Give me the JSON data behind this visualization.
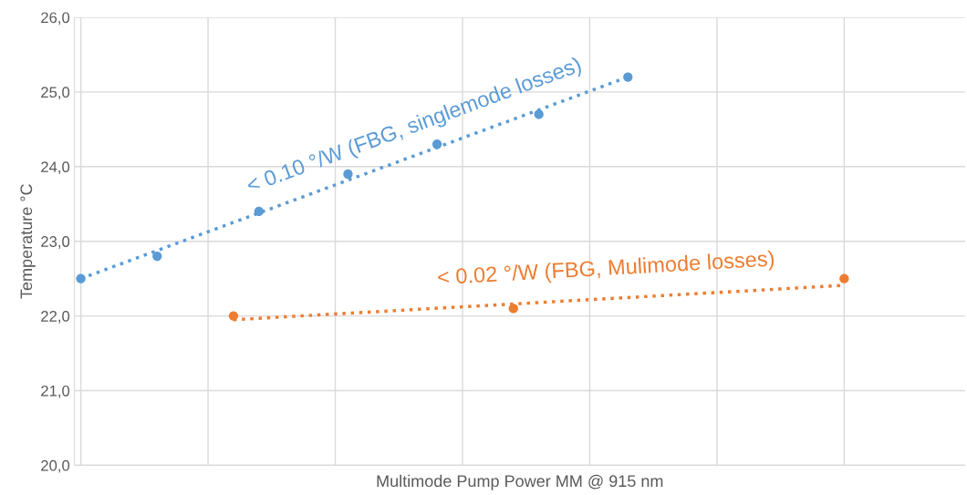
{
  "chart_data": {
    "type": "scatter",
    "xlabel": "Multimode Pump Power MM @ 915 nm",
    "ylabel": "Temperature °C",
    "categories": [
      null,
      null,
      null,
      null,
      null,
      null,
      null,
      null,
      null,
      null,
      null,
      null,
      null,
      null,
      null,
      null,
      null,
      null,
      null,
      null,
      null,
      null,
      null,
      null,
      null,
      null,
      null,
      null,
      null,
      null,
      null,
      null,
      null,
      null,
      null,
      null,
      null,
      null,
      null,
      null,
      null,
      null,
      null,
      null,
      null,
      null,
      null,
      null,
      null,
      null,
      null,
      null,
      null,
      null,
      null,
      null,
      null,
      null,
      null,
      null,
      null,
      null,
      null,
      null,
      null,
      null,
      null,
      null,
      null,
      null
    ],
    "ylim": [
      20,
      26
    ],
    "yticks": [
      {
        "value": 20,
        "label": "20,0"
      },
      {
        "value": 21,
        "label": "21,0"
      },
      {
        "value": 22,
        "label": "22,0"
      },
      {
        "value": 23,
        "label": "23,0"
      },
      {
        "value": 24,
        "label": "24,0"
      },
      {
        "value": 25,
        "label": "25,0"
      },
      {
        "value": 26,
        "label": "26,0"
      }
    ],
    "grid": true,
    "marker": "circle",
    "series": [
      {
        "color": "#5b9bd5",
        "values": [
          22.5,
          null,
          null,
          null,
          null,
          null,
          22.8,
          null,
          null,
          null,
          null,
          null,
          null,
          null,
          23.4,
          null,
          null,
          null,
          null,
          null,
          null,
          23.9,
          null,
          null,
          null,
          null,
          null,
          null,
          24.3,
          null,
          null,
          null,
          null,
          null,
          null,
          null,
          24.7,
          null,
          null,
          null,
          null,
          null,
          null,
          25.2,
          null,
          null,
          null,
          null,
          null,
          null,
          null,
          null,
          null,
          null,
          null,
          null,
          null,
          null,
          null,
          null,
          null,
          null,
          null,
          null,
          null,
          null,
          null,
          null,
          null,
          null
        ]
      },
      {
        "color": "#ed7d31",
        "values": [
          null,
          null,
          null,
          null,
          null,
          null,
          null,
          null,
          null,
          null,
          null,
          null,
          22.0,
          null,
          null,
          null,
          null,
          null,
          null,
          null,
          null,
          null,
          null,
          null,
          null,
          null,
          null,
          null,
          null,
          null,
          null,
          null,
          null,
          null,
          22.1,
          null,
          null,
          null,
          null,
          null,
          null,
          null,
          null,
          null,
          null,
          null,
          null,
          null,
          null,
          null,
          null,
          null,
          null,
          null,
          null,
          null,
          null,
          null,
          null,
          null,
          22.5,
          null,
          null,
          null,
          null,
          null,
          null,
          null,
          null,
          null
        ]
      },
      {
        "type": "line",
        "line_style": "dotted",
        "marker": "none",
        "color": "#5b9bd5",
        "values": [
          22.5,
          null,
          null,
          null,
          null,
          null,
          null,
          null,
          null,
          null,
          null,
          null,
          null,
          null,
          null,
          null,
          null,
          null,
          null,
          null,
          null,
          null,
          null,
          null,
          null,
          null,
          null,
          null,
          null,
          null,
          null,
          null,
          null,
          null,
          null,
          null,
          null,
          null,
          null,
          null,
          null,
          null,
          null,
          25.2,
          null,
          null,
          null,
          null,
          null,
          null,
          null,
          null,
          null,
          null,
          null,
          null,
          null,
          null,
          null,
          null,
          null,
          null,
          null,
          null,
          null,
          null,
          null,
          null,
          null,
          null
        ]
      },
      {
        "type": "line",
        "line_style": "dotted",
        "marker": "none",
        "color": "#ed7d31",
        "values": [
          null,
          null,
          null,
          null,
          null,
          null,
          null,
          null,
          null,
          null,
          null,
          null,
          21.95,
          null,
          null,
          null,
          null,
          null,
          null,
          null,
          null,
          null,
          null,
          null,
          null,
          null,
          null,
          null,
          null,
          null,
          null,
          null,
          null,
          null,
          null,
          null,
          null,
          null,
          null,
          null,
          null,
          null,
          null,
          null,
          null,
          null,
          null,
          null,
          null,
          null,
          null,
          null,
          null,
          null,
          null,
          null,
          null,
          null,
          null,
          null,
          22.41,
          null,
          null,
          null,
          null,
          null,
          null,
          null,
          null,
          null
        ]
      }
    ],
    "annotations": [
      "< 0.10 °/W (FBG, singlemode losses)",
      "< 0.02 °/W (FBG, Mulimode losses)"
    ]
  }
}
